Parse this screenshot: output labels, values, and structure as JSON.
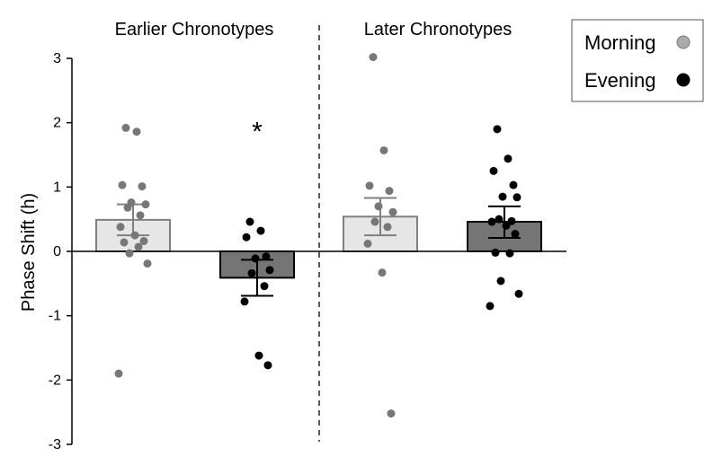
{
  "chart_data": {
    "type": "bar",
    "ylabel": "Phase Shift (h)",
    "ylim": [
      -3,
      3
    ],
    "yticks": [
      3,
      2,
      1,
      0,
      -1,
      -2,
      -3
    ],
    "groups": [
      {
        "label": "Earlier Chronotypes"
      },
      {
        "label": "Later Chronotypes"
      }
    ],
    "legend": {
      "position": "top-right",
      "entries": [
        {
          "label": "Morning",
          "color": "#aaaaaa"
        },
        {
          "label": "Evening",
          "color": "#000000"
        }
      ]
    },
    "bars": [
      {
        "group": 0,
        "condition": "Morning",
        "mean": 0.49,
        "sem_low": 0.25,
        "sem_high": 0.73,
        "fill": "#e6e6e6",
        "stroke": "#808080",
        "point_color": "#777777",
        "points": [
          1.92,
          1.86,
          1.03,
          1.01,
          0.76,
          0.73,
          0.68,
          0.56,
          0.38,
          0.25,
          0.16,
          0.14,
          0.07,
          -0.03,
          -0.19,
          -1.9
        ]
      },
      {
        "group": 0,
        "condition": "Evening",
        "mean": -0.41,
        "sem_low": -0.69,
        "sem_high": -0.13,
        "fill": "#757575",
        "stroke": "#000000",
        "point_color": "#000000",
        "points": [
          0.46,
          0.32,
          0.22,
          -0.08,
          -0.11,
          -0.29,
          -0.34,
          -0.54,
          -0.78,
          -1.62,
          -1.77
        ]
      },
      {
        "group": 1,
        "condition": "Morning",
        "mean": 0.54,
        "sem_low": 0.25,
        "sem_high": 0.83,
        "fill": "#e6e6e6",
        "stroke": "#808080",
        "point_color": "#777777",
        "points": [
          3.02,
          1.57,
          1.02,
          0.94,
          0.7,
          0.61,
          0.46,
          0.38,
          0.12,
          -0.33,
          -2.52
        ]
      },
      {
        "group": 1,
        "condition": "Evening",
        "mean": 0.46,
        "sem_low": 0.21,
        "sem_high": 0.7,
        "fill": "#757575",
        "stroke": "#000000",
        "point_color": "#000000",
        "points": [
          1.9,
          1.44,
          1.25,
          1.03,
          0.85,
          0.84,
          0.5,
          0.47,
          0.46,
          0.4,
          0.27,
          -0.02,
          -0.03,
          -0.46,
          -0.66,
          -0.85
        ]
      }
    ],
    "annotations": [
      {
        "text": "*",
        "bar": 1,
        "y": 1.92
      }
    ]
  }
}
